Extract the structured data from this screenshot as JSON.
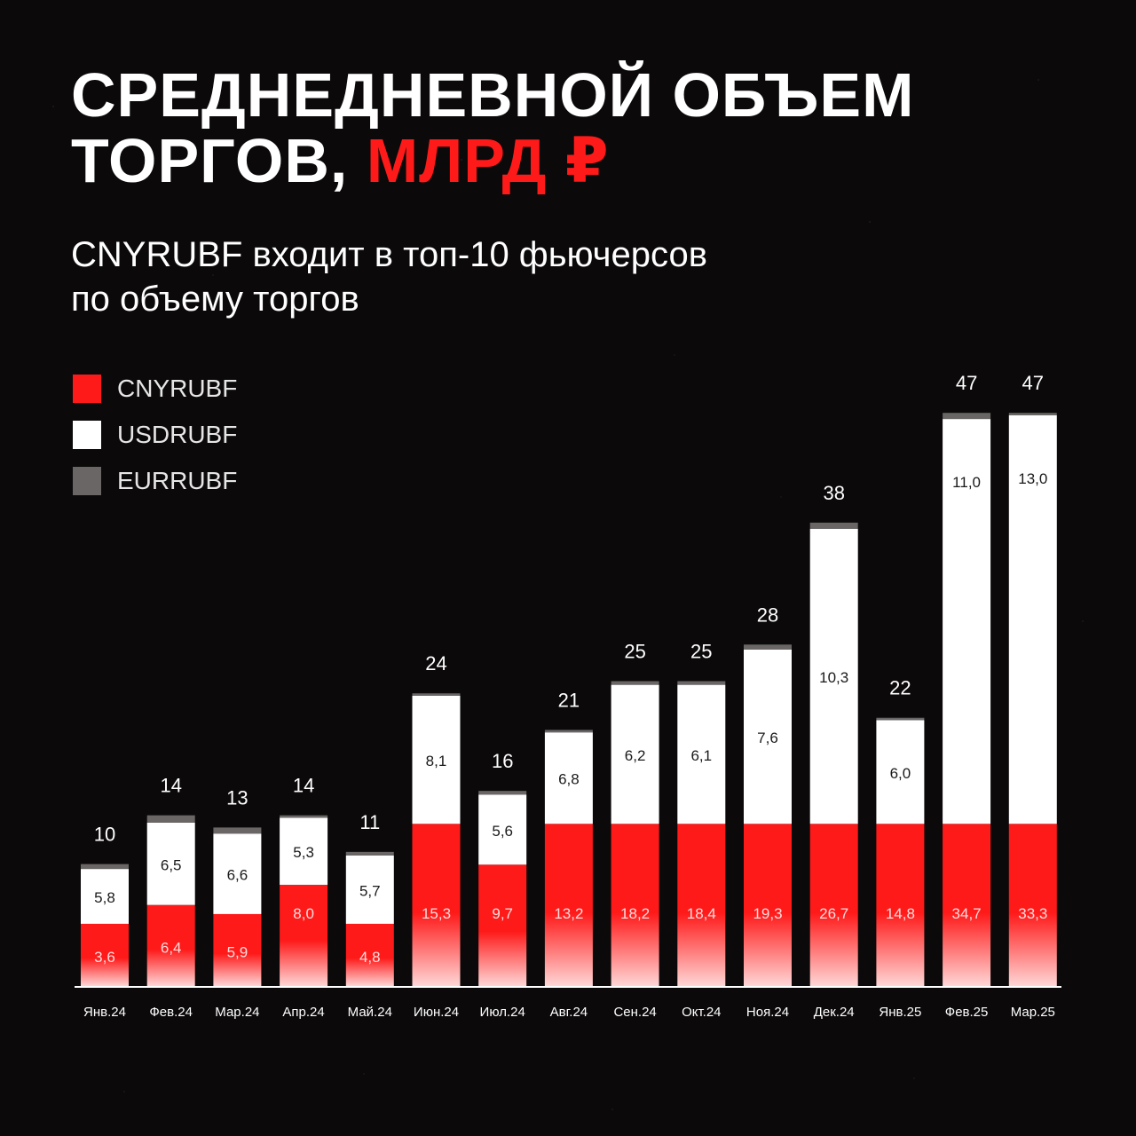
{
  "header": {
    "title_line1": "СРЕДНЕДНЕВНОЙ ОБЪЕМ",
    "title_line2_white": "ТОРГОВ,",
    "title_line2_red": "МЛРД ₽",
    "subtitle_line1": "CNYRUBF входит в топ-10 фьючерсов",
    "subtitle_line2": "по объему торгов"
  },
  "colors": {
    "cny": "#ff1a1a",
    "usd": "#ffffff",
    "eur": "#6b6666",
    "accent": "#ff1a1a"
  },
  "chart_data": {
    "type": "bar",
    "stacked": true,
    "legend_position": "top-left",
    "categories": [
      "Янв.24",
      "Фев.24",
      "Мар.24",
      "Апр.24",
      "Май.24",
      "Июн.24",
      "Июл.24",
      "Авг.24",
      "Сен.24",
      "Окт.24",
      "Ноя.24",
      "Дек.24",
      "Янв.25",
      "Фев.25",
      "Мар.25"
    ],
    "totals": [
      "10",
      "14",
      "13",
      "14",
      "11",
      "24",
      "16",
      "21",
      "25",
      "25",
      "28",
      "38",
      "22",
      "47",
      "47"
    ],
    "series": [
      {
        "name": "CNYRUBF",
        "values": [
          "3,6",
          "6,4",
          "5,9",
          "8,0",
          "4,8",
          "15,3",
          "9,7",
          "13,2",
          "18,2",
          "18,4",
          "19,3",
          "26,7",
          "14,8",
          "34,7",
          "33,3"
        ]
      },
      {
        "name": "USDRUBF",
        "values": [
          "5,8",
          "6,5",
          "6,6",
          "5,3",
          "5,7",
          "8,1",
          "5,6",
          "6,8",
          "6,2",
          "6,1",
          "7,6",
          "10,3",
          "6,0",
          "11,0",
          "13,0"
        ]
      },
      {
        "name": "EURRUBF",
        "values": [
          0.4,
          0.6,
          0.5,
          0.2,
          0.3,
          0.2,
          0.3,
          0.2,
          0.3,
          0.3,
          0.4,
          0.5,
          0.2,
          0.5,
          0.2
        ]
      }
    ]
  }
}
